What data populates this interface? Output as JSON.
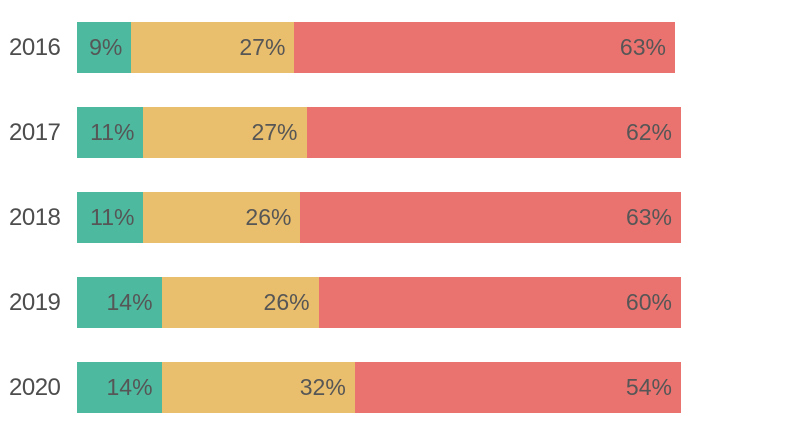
{
  "chart_data": {
    "type": "bar",
    "stacked": true,
    "orientation": "horizontal",
    "title": "",
    "xlabel": "",
    "ylabel": "",
    "legend": "none",
    "grid": false,
    "axes_visible": false,
    "background_color": "#FFFFFF",
    "category_label_color": "#4D4D4D",
    "value_label_color": "#565656",
    "value_label_position": "inside-end",
    "value_suffix": "%",
    "categories": [
      "2016",
      "2017",
      "2018",
      "2019",
      "2020"
    ],
    "series": [
      {
        "name": "green",
        "color": "#4DBAA0",
        "values": [
          9,
          11,
          11,
          14,
          14
        ]
      },
      {
        "name": "yellow",
        "color": "#E9BE6C",
        "values": [
          27,
          27,
          26,
          26,
          32
        ]
      },
      {
        "name": "red",
        "color": "#EA7370",
        "values": [
          63,
          62,
          63,
          60,
          54
        ]
      }
    ],
    "row_totals": [
      99,
      100,
      100,
      100,
      100
    ],
    "xlim": [
      0,
      100
    ]
  }
}
